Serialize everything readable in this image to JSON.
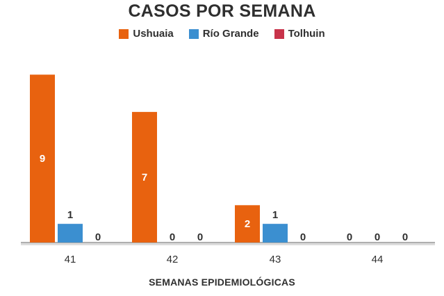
{
  "chart_data": {
    "type": "bar",
    "title": "CASOS POR SEMANA",
    "xlabel": "SEMANAS EPIDEMIOLÓGICAS",
    "ylabel": "",
    "categories": [
      "41",
      "42",
      "43",
      "44"
    ],
    "series": [
      {
        "name": "Ushuaia",
        "color": "#e8620f",
        "values": [
          9,
          7,
          2,
          0
        ]
      },
      {
        "name": "Río Grande",
        "color": "#3b8fd0",
        "values": [
          1,
          0,
          1,
          0
        ]
      },
      {
        "name": "Tolhuin",
        "color": "#c8334a",
        "values": [
          0,
          0,
          0,
          0
        ]
      }
    ],
    "ylim": [
      0,
      9.5
    ],
    "grid": false,
    "legend_position": "top-center",
    "data_labels": true
  }
}
